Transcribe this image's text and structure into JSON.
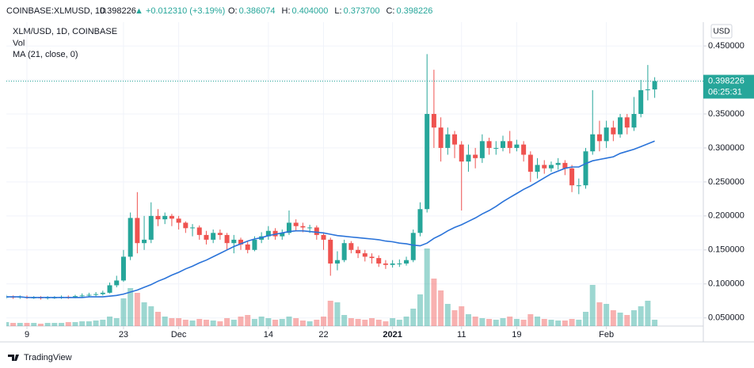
{
  "header": {
    "symbol": "COINBASE:XLMUSD, 1D",
    "price": "0.398226",
    "change": "▲ +0.012310 (+3.19%)",
    "ohlc": [
      {
        "label": "O:",
        "value": "0.386074"
      },
      {
        "label": "H:",
        "value": "0.404000"
      },
      {
        "label": "L:",
        "value": "0.373700"
      },
      {
        "label": "C:",
        "value": "0.398226"
      }
    ]
  },
  "footer": {
    "brand": "TradingView"
  },
  "chart_data": {
    "type": "candlestick",
    "title": "XLM/USD, 1D, COINBASE",
    "volume_name": "Vol",
    "currency": "USD",
    "countdown": "06:25:31",
    "up_color": "#26a69a",
    "down_color": "#ef5350",
    "x": [
      "2020-11-06",
      "2020-11-07",
      "2020-11-08",
      "2020-11-09",
      "2020-11-10",
      "2020-11-11",
      "2020-11-12",
      "2020-11-13",
      "2020-11-14",
      "2020-11-15",
      "2020-11-16",
      "2020-11-17",
      "2020-11-18",
      "2020-11-19",
      "2020-11-20",
      "2020-11-21",
      "2020-11-22",
      "2020-11-23",
      "2020-11-24",
      "2020-11-25",
      "2020-11-26",
      "2020-11-27",
      "2020-11-28",
      "2020-11-29",
      "2020-11-30",
      "2020-12-01",
      "2020-12-02",
      "2020-12-03",
      "2020-12-04",
      "2020-12-05",
      "2020-12-06",
      "2020-12-07",
      "2020-12-08",
      "2020-12-09",
      "2020-12-10",
      "2020-12-11",
      "2020-12-12",
      "2020-12-13",
      "2020-12-14",
      "2020-12-15",
      "2020-12-16",
      "2020-12-17",
      "2020-12-18",
      "2020-12-19",
      "2020-12-20",
      "2020-12-21",
      "2020-12-22",
      "2020-12-23",
      "2020-12-24",
      "2020-12-25",
      "2020-12-26",
      "2020-12-27",
      "2020-12-28",
      "2020-12-29",
      "2020-12-30",
      "2020-12-31",
      "2021-01-01",
      "2021-01-02",
      "2021-01-03",
      "2021-01-04",
      "2021-01-05",
      "2021-01-06",
      "2021-01-07",
      "2021-01-08",
      "2021-01-09",
      "2021-01-10",
      "2021-01-11",
      "2021-01-12",
      "2021-01-13",
      "2021-01-14",
      "2021-01-15",
      "2021-01-16",
      "2021-01-17",
      "2021-01-18",
      "2021-01-19",
      "2021-01-20",
      "2021-01-21",
      "2021-01-22",
      "2021-01-23",
      "2021-01-24",
      "2021-01-25",
      "2021-01-26",
      "2021-01-27",
      "2021-01-28",
      "2021-01-29",
      "2021-01-30",
      "2021-01-31",
      "2021-02-01",
      "2021-02-02",
      "2021-02-03",
      "2021-02-04",
      "2021-02-05",
      "2021-02-06",
      "2021-02-07",
      "2021-02-08"
    ],
    "open": [
      0.08,
      0.081,
      0.08,
      0.081,
      0.08,
      0.08,
      0.079,
      0.08,
      0.08,
      0.081,
      0.08,
      0.082,
      0.083,
      0.084,
      0.085,
      0.087,
      0.098,
      0.105,
      0.14,
      0.197,
      0.16,
      0.165,
      0.2,
      0.195,
      0.2,
      0.196,
      0.19,
      0.182,
      0.183,
      0.172,
      0.165,
      0.175,
      0.172,
      0.16,
      0.165,
      0.158,
      0.15,
      0.165,
      0.17,
      0.178,
      0.17,
      0.175,
      0.19,
      0.185,
      0.183,
      0.183,
      0.172,
      0.165,
      0.13,
      0.135,
      0.16,
      0.15,
      0.145,
      0.14,
      0.138,
      0.13,
      0.128,
      0.13,
      0.13,
      0.135,
      0.175,
      0.21,
      0.35,
      0.33,
      0.3,
      0.32,
      0.305,
      0.28,
      0.29,
      0.285,
      0.31,
      0.3,
      0.3,
      0.31,
      0.3,
      0.305,
      0.29,
      0.265,
      0.275,
      0.27,
      0.275,
      0.278,
      0.27,
      0.245,
      0.245,
      0.295,
      0.32,
      0.31,
      0.33,
      0.32,
      0.345,
      0.33,
      0.35,
      0.385,
      0.386074
    ],
    "high": [
      0.084,
      0.083,
      0.083,
      0.083,
      0.082,
      0.082,
      0.082,
      0.082,
      0.083,
      0.083,
      0.084,
      0.086,
      0.087,
      0.088,
      0.09,
      0.102,
      0.112,
      0.15,
      0.205,
      0.235,
      0.2,
      0.22,
      0.21,
      0.205,
      0.203,
      0.2,
      0.192,
      0.188,
      0.186,
      0.178,
      0.18,
      0.18,
      0.175,
      0.172,
      0.168,
      0.162,
      0.17,
      0.176,
      0.185,
      0.182,
      0.18,
      0.208,
      0.195,
      0.19,
      0.187,
      0.186,
      0.176,
      0.168,
      0.148,
      0.165,
      0.163,
      0.155,
      0.15,
      0.145,
      0.142,
      0.135,
      0.135,
      0.136,
      0.14,
      0.18,
      0.22,
      0.438,
      0.415,
      0.345,
      0.33,
      0.325,
      0.31,
      0.305,
      0.3,
      0.32,
      0.315,
      0.31,
      0.318,
      0.325,
      0.312,
      0.31,
      0.295,
      0.285,
      0.282,
      0.28,
      0.285,
      0.282,
      0.275,
      0.255,
      0.3,
      0.385,
      0.34,
      0.34,
      0.34,
      0.35,
      0.35,
      0.375,
      0.4,
      0.422,
      0.404
    ],
    "low": [
      0.078,
      0.078,
      0.078,
      0.078,
      0.078,
      0.077,
      0.077,
      0.078,
      0.078,
      0.078,
      0.079,
      0.08,
      0.081,
      0.082,
      0.083,
      0.086,
      0.095,
      0.103,
      0.135,
      0.145,
      0.15,
      0.16,
      0.185,
      0.188,
      0.185,
      0.18,
      0.175,
      0.17,
      0.165,
      0.158,
      0.16,
      0.165,
      0.15,
      0.145,
      0.15,
      0.145,
      0.148,
      0.16,
      0.165,
      0.165,
      0.165,
      0.172,
      0.178,
      0.176,
      0.175,
      0.165,
      0.15,
      0.112,
      0.12,
      0.132,
      0.145,
      0.138,
      0.133,
      0.13,
      0.125,
      0.122,
      0.124,
      0.125,
      0.127,
      0.132,
      0.17,
      0.205,
      0.3,
      0.28,
      0.29,
      0.285,
      0.208,
      0.265,
      0.27,
      0.278,
      0.29,
      0.29,
      0.295,
      0.292,
      0.295,
      0.28,
      0.25,
      0.255,
      0.262,
      0.265,
      0.268,
      0.26,
      0.235,
      0.232,
      0.24,
      0.29,
      0.295,
      0.3,
      0.31,
      0.315,
      0.32,
      0.325,
      0.345,
      0.37,
      0.3737
    ],
    "close": [
      0.081,
      0.08,
      0.081,
      0.08,
      0.08,
      0.079,
      0.08,
      0.08,
      0.081,
      0.08,
      0.082,
      0.083,
      0.084,
      0.085,
      0.087,
      0.098,
      0.105,
      0.14,
      0.197,
      0.16,
      0.165,
      0.2,
      0.195,
      0.2,
      0.196,
      0.19,
      0.182,
      0.183,
      0.172,
      0.165,
      0.175,
      0.172,
      0.16,
      0.165,
      0.158,
      0.15,
      0.165,
      0.17,
      0.178,
      0.17,
      0.175,
      0.19,
      0.185,
      0.183,
      0.183,
      0.172,
      0.165,
      0.13,
      0.135,
      0.16,
      0.15,
      0.145,
      0.14,
      0.138,
      0.13,
      0.128,
      0.13,
      0.13,
      0.135,
      0.175,
      0.21,
      0.35,
      0.33,
      0.3,
      0.32,
      0.305,
      0.28,
      0.29,
      0.285,
      0.31,
      0.3,
      0.3,
      0.31,
      0.3,
      0.305,
      0.29,
      0.265,
      0.275,
      0.27,
      0.275,
      0.278,
      0.27,
      0.245,
      0.245,
      0.295,
      0.32,
      0.31,
      0.33,
      0.32,
      0.345,
      0.33,
      0.35,
      0.385,
      0.386074,
      0.398226
    ],
    "volume": [
      5,
      4,
      4,
      4,
      4,
      3,
      4,
      4,
      4,
      5,
      5,
      6,
      6,
      7,
      8,
      12,
      10,
      35,
      48,
      42,
      30,
      25,
      18,
      12,
      10,
      10,
      8,
      7,
      9,
      8,
      7,
      6,
      10,
      8,
      12,
      14,
      9,
      12,
      10,
      8,
      9,
      12,
      10,
      7,
      6,
      8,
      12,
      32,
      30,
      14,
      10,
      9,
      8,
      10,
      8,
      6,
      10,
      8,
      12,
      22,
      40,
      98,
      60,
      45,
      28,
      20,
      25,
      15,
      12,
      10,
      9,
      8,
      10,
      12,
      9,
      8,
      15,
      12,
      9,
      8,
      7,
      7,
      9,
      8,
      18,
      52,
      30,
      28,
      20,
      17,
      14,
      20,
      25,
      32,
      8
    ],
    "ma": {
      "name": "MA (21, close, 0)",
      "color": "#2a73d9",
      "values": [
        0.081,
        0.081,
        0.081,
        0.08,
        0.08,
        0.08,
        0.08,
        0.08,
        0.08,
        0.08,
        0.08,
        0.08,
        0.081,
        0.081,
        0.081,
        0.082,
        0.083,
        0.085,
        0.088,
        0.091,
        0.095,
        0.099,
        0.104,
        0.108,
        0.113,
        0.117,
        0.122,
        0.126,
        0.131,
        0.135,
        0.14,
        0.145,
        0.15,
        0.155,
        0.159,
        0.163,
        0.166,
        0.168,
        0.171,
        0.173,
        0.175,
        0.177,
        0.178,
        0.178,
        0.177,
        0.176,
        0.175,
        0.173,
        0.171,
        0.17,
        0.169,
        0.168,
        0.167,
        0.166,
        0.165,
        0.163,
        0.162,
        0.16,
        0.159,
        0.157,
        0.156,
        0.16,
        0.167,
        0.172,
        0.178,
        0.183,
        0.187,
        0.192,
        0.197,
        0.203,
        0.208,
        0.214,
        0.221,
        0.227,
        0.233,
        0.239,
        0.244,
        0.25,
        0.256,
        0.262,
        0.266,
        0.27,
        0.272,
        0.272,
        0.277,
        0.281,
        0.283,
        0.285,
        0.287,
        0.292,
        0.295,
        0.298,
        0.302,
        0.306,
        0.31
      ]
    },
    "ylim": [
      0.038,
      0.485
    ],
    "yticks": [
      {
        "value": 0.05,
        "label": "0.050000"
      },
      {
        "value": 0.1,
        "label": "0.100000"
      },
      {
        "value": 0.15,
        "label": "0.150000"
      },
      {
        "value": 0.2,
        "label": "0.200000"
      },
      {
        "value": 0.25,
        "label": "0.250000"
      },
      {
        "value": 0.3,
        "label": "0.300000"
      },
      {
        "value": 0.35,
        "label": "0.350000"
      },
      {
        "value": 0.4,
        "label": "0.400000"
      },
      {
        "value": 0.45,
        "label": "0.450000"
      }
    ],
    "xticks": [
      {
        "value": "2020-11-09",
        "label": "9"
      },
      {
        "value": "2020-11-23",
        "label": "23"
      },
      {
        "value": "2020-12-01",
        "label": "Dec"
      },
      {
        "value": "2020-12-14",
        "label": "14"
      },
      {
        "value": "2020-12-22",
        "label": "22"
      },
      {
        "value": "2021-01-01",
        "label": "2021"
      },
      {
        "value": "2021-01-11",
        "label": "11"
      },
      {
        "value": "2021-01-19",
        "label": "19"
      },
      {
        "value": "2021-02-01",
        "label": "Feb"
      }
    ],
    "grid": true
  }
}
